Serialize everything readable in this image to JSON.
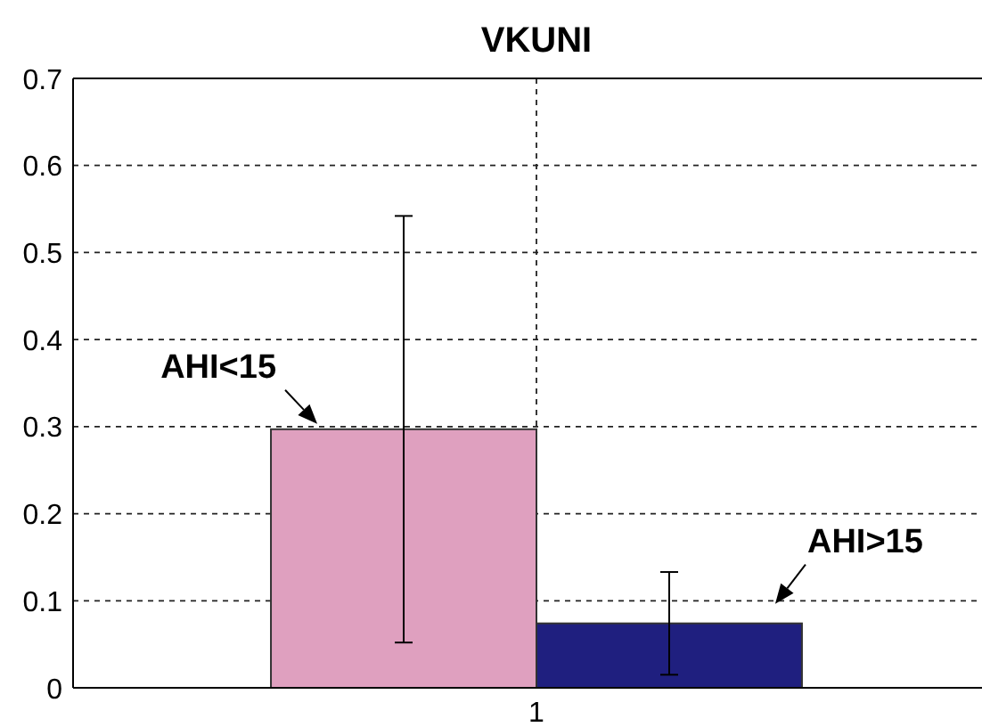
{
  "chart_data": {
    "type": "bar",
    "title": "VKUNI",
    "categories": [
      "1"
    ],
    "series": [
      {
        "name": "AHI<15",
        "color": "#dfa0bf",
        "values": [
          0.297
        ],
        "errors": [
          0.245
        ]
      },
      {
        "name": "AHI>15",
        "color": "#1f1f7f",
        "values": [
          0.074
        ],
        "errors": [
          0.059
        ]
      }
    ],
    "ylim": [
      0,
      0.7
    ],
    "yticks": [
      0,
      0.1,
      0.2,
      0.3,
      0.4,
      0.5,
      0.6,
      0.7
    ],
    "grid": true
  }
}
